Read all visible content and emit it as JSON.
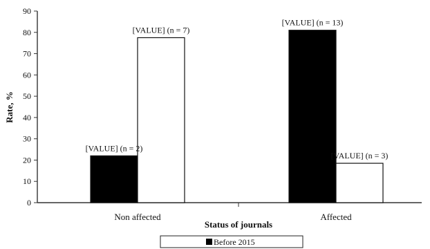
{
  "chart_data": {
    "type": "bar",
    "categories": [
      "Non affected",
      "Affected"
    ],
    "series": [
      {
        "name": "Before 2015",
        "values": [
          22,
          81
        ],
        "labels": [
          "[VALUE] (n = 2)",
          "[VALUE] (n = 13)"
        ],
        "color": "#000000"
      },
      {
        "name": "",
        "values": [
          77.5,
          18.5
        ],
        "labels": [
          "[VALUE] (n = 7)",
          "[VALUE] (n = 3)"
        ],
        "color": "#ffffff"
      }
    ],
    "xlabel": "Status of journals",
    "ylabel": "Rate, %",
    "ylim": [
      0,
      90
    ],
    "yticks": [
      0,
      10,
      20,
      30,
      40,
      50,
      60,
      70,
      80,
      90
    ],
    "grid": false,
    "legend_position": "bottom"
  }
}
